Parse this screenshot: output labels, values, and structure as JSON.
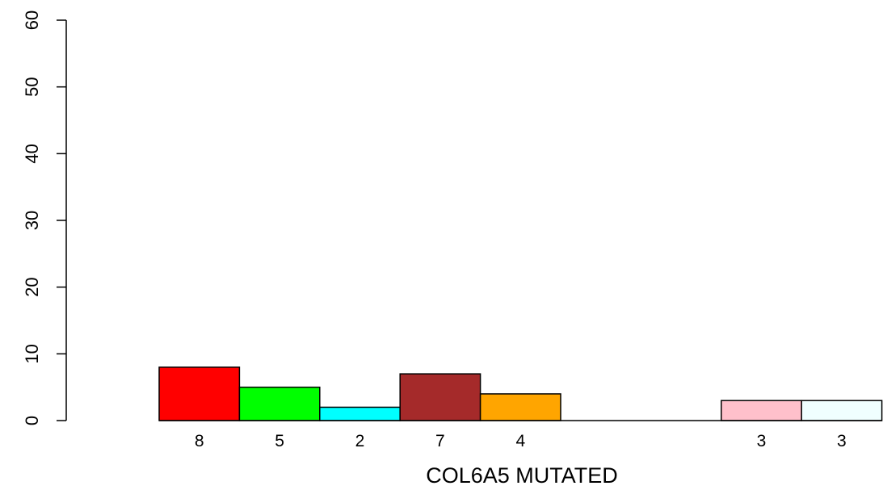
{
  "chart_data": {
    "type": "bar",
    "xlabel": "COL6A5 MUTATED",
    "ylabel": "",
    "ylim": [
      0,
      60
    ],
    "yticks": [
      0,
      10,
      20,
      30,
      40,
      50,
      60
    ],
    "grid": false,
    "bars": [
      {
        "value": 8,
        "label": "8",
        "color": "#ff0000"
      },
      {
        "value": 5,
        "label": "5",
        "color": "#00ff00"
      },
      {
        "value": 2,
        "label": "2",
        "color": "#00ffff"
      },
      {
        "value": 7,
        "label": "7",
        "color": "#a52a2a"
      },
      {
        "value": 4,
        "label": "4",
        "color": "#ffa500"
      },
      {
        "value": 0,
        "label": "",
        "color": "#ffffff"
      },
      {
        "value": 0,
        "label": "",
        "color": "#ffffff"
      },
      {
        "value": 3,
        "label": "3",
        "color": "#ffc0cb"
      },
      {
        "value": 3,
        "label": "3",
        "color": "#f0ffff"
      }
    ]
  }
}
